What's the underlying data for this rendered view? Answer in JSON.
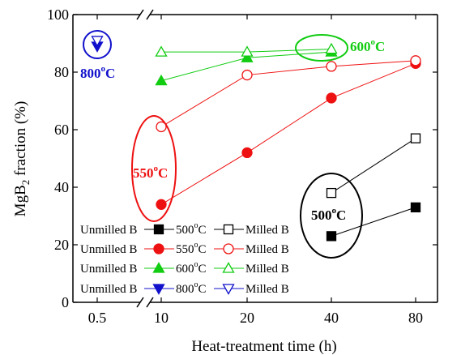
{
  "chart_data": {
    "type": "line",
    "xlabel": "Heat-treatment time (h)",
    "ylabel_main": "MgB",
    "ylabel_sub": "2",
    "ylabel_rest": " fraction (%)",
    "x_ticks": [
      "0.5",
      "10",
      "20",
      "40",
      "80"
    ],
    "ylim": [
      0,
      100
    ],
    "y_ticks": [
      0,
      20,
      40,
      60,
      80,
      100
    ],
    "series": [
      {
        "name": "500°C Unmilled B",
        "temp": "500",
        "milled": false,
        "color": "#000000",
        "marker": "square",
        "filled": true,
        "points": [
          {
            "x": "40",
            "y": 23
          },
          {
            "x": "80",
            "y": 33
          }
        ]
      },
      {
        "name": "500°C Milled B",
        "temp": "500",
        "milled": true,
        "color": "#000000",
        "marker": "square",
        "filled": false,
        "points": [
          {
            "x": "40",
            "y": 38
          },
          {
            "x": "80",
            "y": 57
          }
        ]
      },
      {
        "name": "550°C Unmilled B",
        "temp": "550",
        "milled": false,
        "color": "#ee1111",
        "marker": "circle",
        "filled": true,
        "points": [
          {
            "x": "10",
            "y": 34
          },
          {
            "x": "20",
            "y": 52
          },
          {
            "x": "40",
            "y": 71
          },
          {
            "x": "80",
            "y": 83
          }
        ]
      },
      {
        "name": "550°C Milled B",
        "temp": "550",
        "milled": true,
        "color": "#ee1111",
        "marker": "circle",
        "filled": false,
        "points": [
          {
            "x": "10",
            "y": 61
          },
          {
            "x": "20",
            "y": 79
          },
          {
            "x": "40",
            "y": 82
          },
          {
            "x": "80",
            "y": 84
          }
        ]
      },
      {
        "name": "600°C Unmilled B",
        "temp": "600",
        "milled": false,
        "color": "#11cc11",
        "marker": "triangle-up",
        "filled": true,
        "points": [
          {
            "x": "10",
            "y": 77
          },
          {
            "x": "20",
            "y": 85
          },
          {
            "x": "40",
            "y": 87
          }
        ]
      },
      {
        "name": "600°C Milled B",
        "temp": "600",
        "milled": true,
        "color": "#11cc11",
        "marker": "triangle-up",
        "filled": false,
        "points": [
          {
            "x": "10",
            "y": 87
          },
          {
            "x": "20",
            "y": 87
          },
          {
            "x": "40",
            "y": 88
          }
        ]
      },
      {
        "name": "800°C Unmilled B",
        "temp": "800",
        "milled": false,
        "color": "#1111cc",
        "marker": "triangle-down",
        "filled": true,
        "points": [
          {
            "x": "0.5",
            "y": 89
          }
        ]
      },
      {
        "name": "800°C Milled B",
        "temp": "800",
        "milled": true,
        "color": "#1111cc",
        "marker": "triangle-down",
        "filled": false,
        "points": [
          {
            "x": "0.5",
            "y": 91
          }
        ]
      }
    ],
    "legend": {
      "placement": "bottom-left",
      "rows": [
        {
          "left": "Unmilled B",
          "temp": "500",
          "unit": "C",
          "right": "Milled B",
          "color": "#000000",
          "marker": "square"
        },
        {
          "left": "Unmilled B",
          "temp": "550",
          "unit": "C",
          "right": "Milled B",
          "color": "#ee1111",
          "marker": "circle"
        },
        {
          "left": "Unmilled B",
          "temp": "600",
          "unit": "C",
          "right": "Milled B",
          "color": "#11cc11",
          "marker": "triangle-up"
        },
        {
          "left": "Unmilled B",
          "temp": "800",
          "unit": "C",
          "right": "Milled B",
          "color": "#1111cc",
          "marker": "triangle-down"
        }
      ]
    },
    "annotations": [
      {
        "temp": "800",
        "unit": "C",
        "color": "#1111cc"
      },
      {
        "temp": "600",
        "unit": "C",
        "color": "#11cc11"
      },
      {
        "temp": "550",
        "unit": "C",
        "color": "#ee1111"
      },
      {
        "temp": "500",
        "unit": "C",
        "color": "#000000"
      }
    ],
    "axis_break": "between 0.5 and 10",
    "grid": false
  }
}
